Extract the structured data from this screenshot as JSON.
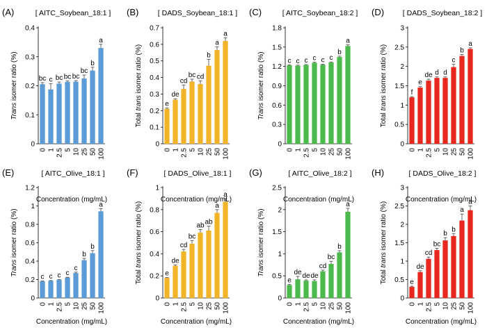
{
  "figure": {
    "x_title": "Concentration (mg/mL)",
    "categories": [
      "0",
      "1",
      "2.5",
      "5",
      "10",
      "25",
      "50",
      "100"
    ]
  },
  "colors": {
    "blue": "#5b9bd5",
    "yellow": "#f0b429",
    "green": "#4cb94c",
    "red": "#e8281e"
  },
  "chart_data": [
    {
      "type": "bar",
      "panel": "(A)",
      "title": "[ AITC_Soybean_18:1 ]",
      "color": "blue",
      "ylabel_italic": "Trans",
      "ylabel_rest": " isomer ratio (%)",
      "xlabel": "Concentration (mg/mL)",
      "categories": [
        "0",
        "1",
        "2.5",
        "5",
        "10",
        "25",
        "50",
        "100"
      ],
      "values": [
        0.205,
        0.187,
        0.207,
        0.213,
        0.214,
        0.225,
        0.252,
        0.33
      ],
      "errors": [
        0.006,
        0.02,
        0.006,
        0.004,
        0.004,
        0.012,
        0.012,
        0.013
      ],
      "letters": [
        "bc",
        "c",
        "bc",
        "bc",
        "bc",
        "bc",
        "b",
        "a"
      ],
      "ylim": [
        0,
        0.4
      ],
      "yticks": [
        0,
        0.1,
        0.2,
        0.3,
        0.4
      ],
      "ytick_labels": [
        "0",
        "0.1",
        "0.2",
        "0.3",
        "0.4"
      ]
    },
    {
      "type": "bar",
      "panel": "(B)",
      "title": "[ DADS_Soybean_18:1 ]",
      "color": "yellow",
      "ylabel_pre": "Total ",
      "ylabel_italic": "trans",
      "ylabel_rest": " isomer ratio (%)",
      "xlabel": "Concentration (mg/mL)",
      "categories": [
        "0",
        "1",
        "2.5",
        "5",
        "10",
        "25",
        "50",
        "100"
      ],
      "values": [
        0.21,
        0.265,
        0.33,
        0.375,
        0.36,
        0.47,
        0.565,
        0.62
      ],
      "errors": [
        0.006,
        0.007,
        0.025,
        0.015,
        0.02,
        0.04,
        0.02,
        0.02
      ],
      "letters": [
        "e",
        "de",
        "cd",
        "bc",
        "cd",
        "b",
        "a",
        "a"
      ],
      "ylim": [
        0,
        0.7
      ],
      "yticks": [
        0,
        0.1,
        0.2,
        0.3,
        0.4,
        0.5,
        0.6,
        0.7
      ],
      "ytick_labels": [
        "0",
        "0.1",
        "0.2",
        "0.3",
        "0.4",
        "0.5",
        "0.6",
        "0.7"
      ]
    },
    {
      "type": "bar",
      "panel": "(C)",
      "title": "[ AITC_Soybean_18:2 ]",
      "color": "green",
      "ylabel_italic": "Trans",
      "ylabel_rest": " isomer ratio (%)",
      "xlabel": "Concentration (mg/mL)",
      "categories": [
        "0",
        "1",
        "2.5",
        "5",
        "10",
        "25",
        "50",
        "100"
      ],
      "values": [
        1.215,
        1.21,
        1.22,
        1.255,
        1.225,
        1.26,
        1.345,
        1.515
      ],
      "errors": [
        0.01,
        0.01,
        0.01,
        0.01,
        0.01,
        0.01,
        0.015,
        0.02
      ],
      "letters": [
        "c",
        "c",
        "c",
        "c",
        "c",
        "c",
        "b",
        "a"
      ],
      "ylim": [
        0,
        1.8
      ],
      "yticks": [
        0,
        0.3,
        0.6,
        0.9,
        1.2,
        1.5,
        1.8
      ],
      "ytick_labels": [
        "0",
        "0.3",
        "0.6",
        "0.9",
        "1.2",
        "1.5",
        "1.8"
      ]
    },
    {
      "type": "bar",
      "panel": "(D)",
      "title": "[ DADS_Soybean_18:2 ]",
      "color": "red",
      "ylabel_pre": "Total ",
      "ylabel_italic": "trans",
      "ylabel_rest": " isomer ratio (%)",
      "xlabel": "Concentration (mg/mL)",
      "categories": [
        "0",
        "1",
        "2.5",
        "5",
        "10",
        "25",
        "50",
        "100"
      ],
      "values": [
        1.2,
        1.45,
        1.63,
        1.7,
        1.7,
        1.98,
        2.27,
        2.45
      ],
      "errors": [
        0.02,
        0.03,
        0.04,
        0.03,
        0.03,
        0.08,
        0.04,
        0.03
      ],
      "letters": [
        "f",
        "e",
        "de",
        "d",
        "d",
        "c",
        "b",
        "a"
      ],
      "ylim": [
        0,
        3
      ],
      "yticks": [
        0,
        0.5,
        1,
        1.5,
        2,
        2.5,
        3
      ],
      "ytick_labels": [
        "0",
        "0.5",
        "1",
        "1.5",
        "2",
        "2.5",
        "3"
      ]
    },
    {
      "type": "bar",
      "panel": "(E)",
      "title": "[ AITC_Olive_18:1 ]",
      "color": "blue",
      "ylabel_italic": "Trans",
      "ylabel_rest": " isomer ratio (%)",
      "xlabel": "Concentration (mg/mL)",
      "categories": [
        "0",
        "1",
        "2.5",
        "5",
        "10",
        "25",
        "50",
        "100"
      ],
      "values": [
        0.18,
        0.185,
        0.195,
        0.22,
        0.27,
        0.41,
        0.485,
        0.94
      ],
      "errors": [
        0.005,
        0.005,
        0.005,
        0.005,
        0.01,
        0.02,
        0.03,
        0.03
      ],
      "letters": [
        "c",
        "c",
        "c",
        "c",
        "c",
        "b",
        "b",
        "a"
      ],
      "ylim": [
        0,
        1.2
      ],
      "yticks": [
        0,
        0.2,
        0.4,
        0.6,
        0.8,
        1,
        1.2
      ],
      "ytick_labels": [
        "0",
        "0.2",
        "0.4",
        "0.6",
        "0.8",
        "1",
        "1.2"
      ]
    },
    {
      "type": "bar",
      "panel": "(F)",
      "title": "[ DADS_Olive_18:1 ]",
      "color": "yellow",
      "ylabel_pre": "Total ",
      "ylabel_italic": "trans",
      "ylabel_rest": " isomer ratio (%)",
      "xlabel": "Concentration (mg/mL)",
      "categories": [
        "0",
        "1",
        "2.5",
        "5",
        "10",
        "25",
        "50",
        "100"
      ],
      "values": [
        0.18,
        0.29,
        0.42,
        0.49,
        0.59,
        0.61,
        0.77,
        0.87
      ],
      "errors": [
        0.005,
        0.01,
        0.02,
        0.03,
        0.03,
        0.04,
        0.03,
        0.03
      ],
      "letters": [
        "e",
        "de",
        "cd",
        "bc",
        "ab",
        "ab",
        "a",
        "a"
      ],
      "ylim": [
        0,
        1
      ],
      "yticks": [
        0,
        0.2,
        0.4,
        0.6,
        0.8,
        1
      ],
      "ytick_labels": [
        "0",
        "0.2",
        "0.4",
        "0.6",
        "0.8",
        "1"
      ]
    },
    {
      "type": "bar",
      "panel": "(G)",
      "title": "[ AITC_Olive_18:2 ]",
      "color": "green",
      "ylabel_italic": "Trans",
      "ylabel_rest": " isomer ratio (%)",
      "xlabel": "Concentration (mg/mL)",
      "categories": [
        "0",
        "1",
        "2.5",
        "5",
        "10",
        "25",
        "50",
        "100"
      ],
      "values": [
        0.29,
        0.42,
        0.39,
        0.38,
        0.6,
        0.77,
        1.03,
        1.95
      ],
      "errors": [
        0.02,
        0.07,
        0.02,
        0.03,
        0.03,
        0.06,
        0.04,
        0.08
      ],
      "letters": [
        "e",
        "de",
        "de",
        "de",
        "cd",
        "bc",
        "b",
        "a"
      ],
      "ylim": [
        0,
        2.5
      ],
      "yticks": [
        0,
        0.5,
        1,
        1.5,
        2,
        2.5
      ],
      "ytick_labels": [
        "0",
        "0.5",
        "1",
        "1.5",
        "2",
        "2.5"
      ]
    },
    {
      "type": "bar",
      "panel": "(H)",
      "title": "[ DADS_Olive_18:2 ]",
      "color": "red",
      "ylabel_pre": "Total ",
      "ylabel_italic": "trans",
      "ylabel_rest": " isomer ratio (%)",
      "xlabel": "Concentration (mg/mL)",
      "categories": [
        "0",
        "1",
        "2.5",
        "5",
        "10",
        "25",
        "50",
        "100"
      ],
      "values": [
        0.3,
        0.7,
        1.06,
        1.3,
        1.56,
        1.68,
        2.1,
        2.38
      ],
      "errors": [
        0.02,
        0.04,
        0.05,
        0.05,
        0.08,
        0.07,
        0.18,
        0.12
      ],
      "letters": [
        "e",
        "de",
        "cd",
        "bc",
        "b",
        "b",
        "a",
        "a"
      ],
      "ylim": [
        0,
        3
      ],
      "yticks": [
        0,
        0.5,
        1,
        1.5,
        2,
        2.5,
        3
      ],
      "ytick_labels": [
        "0",
        "0.5",
        "1",
        "1.5",
        "2",
        "2.5",
        "3"
      ]
    }
  ]
}
